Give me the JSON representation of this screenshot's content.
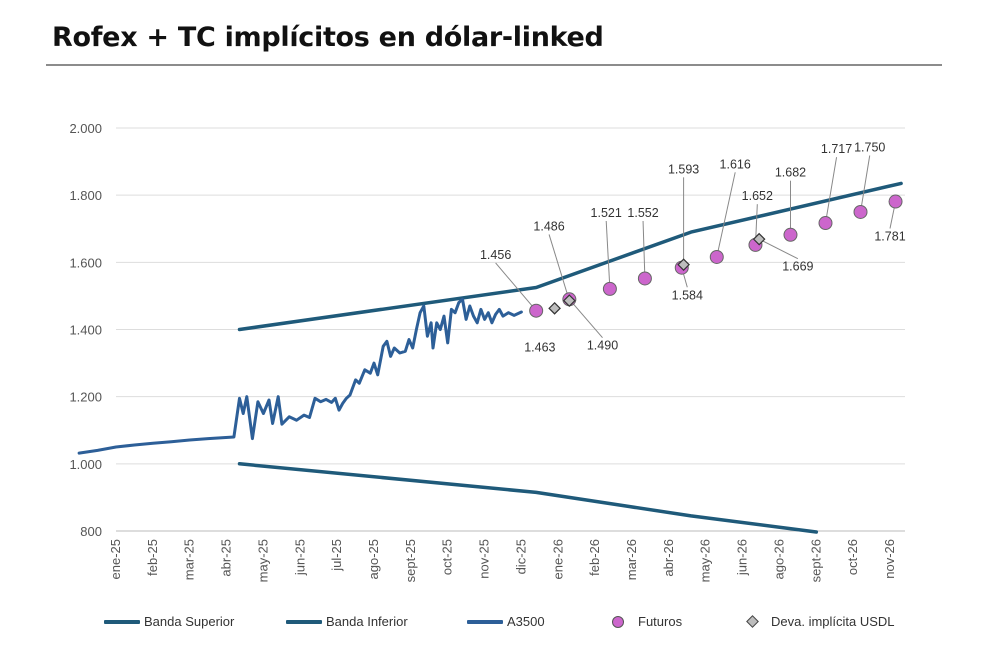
{
  "title": "Rofex + TC implícitos en dólar-linked",
  "colors": {
    "banda": "#1f5a7a",
    "a3500": "#2d5f98",
    "futuros": "#cc66cc",
    "deva": "#bdbdbd",
    "grid": "#dddddd"
  },
  "chart_data": {
    "type": "line",
    "title": "Rofex + TC implícitos en dólar-linked",
    "ylim": [
      800,
      2000
    ],
    "yticks": [
      800,
      1000,
      1200,
      1400,
      1600,
      1800,
      2000
    ],
    "ytick_labels": [
      "800",
      "1.000",
      "1.200",
      "1.400",
      "1.600",
      "1.800",
      "2.000"
    ],
    "xlim": [
      0,
      22
    ],
    "xticks": [
      1,
      2,
      3,
      4,
      5,
      6,
      7,
      8,
      9,
      10,
      11,
      12,
      13,
      14,
      15,
      16,
      17,
      18,
      19,
      20,
      21,
      22
    ],
    "xtick_labels": [
      "ene-25",
      "feb-25",
      "mar-25",
      "abr-25",
      "may-25",
      "jun-25",
      "jul-25",
      "ago-25",
      "sept-25",
      "oct-25",
      "nov-25",
      "dic-25",
      "ene-26",
      "feb-26",
      "mar-26",
      "abr-26",
      "may-26",
      "jun-26",
      "ago-26",
      "sept-26",
      "oct-26",
      "nov-26"
    ],
    "grid": true,
    "legend_position": "bottom",
    "series": [
      {
        "name": "Banda Superior",
        "style": "line",
        "points": [
          [
            4.35,
            1400
          ],
          [
            12.4,
            1525
          ],
          [
            16.6,
            1690
          ],
          [
            22.3,
            1835
          ]
        ]
      },
      {
        "name": "Banda Inferior",
        "style": "line",
        "points": [
          [
            4.35,
            1000
          ],
          [
            12.4,
            915
          ],
          [
            16.6,
            845
          ],
          [
            20.0,
            797
          ]
        ]
      },
      {
        "name": "A3500",
        "style": "line",
        "points": [
          [
            0,
            1032
          ],
          [
            0.5,
            1040
          ],
          [
            1,
            1050
          ],
          [
            1.5,
            1056
          ],
          [
            2,
            1061
          ],
          [
            2.5,
            1066
          ],
          [
            3,
            1071
          ],
          [
            3.5,
            1075
          ],
          [
            4.2,
            1080
          ],
          [
            4.35,
            1195
          ],
          [
            4.45,
            1150
          ],
          [
            4.55,
            1200
          ],
          [
            4.7,
            1075
          ],
          [
            4.85,
            1185
          ],
          [
            5.0,
            1150
          ],
          [
            5.15,
            1190
          ],
          [
            5.25,
            1120
          ],
          [
            5.4,
            1200
          ],
          [
            5.5,
            1118
          ],
          [
            5.7,
            1140
          ],
          [
            5.9,
            1130
          ],
          [
            6.1,
            1145
          ],
          [
            6.25,
            1138
          ],
          [
            6.4,
            1195
          ],
          [
            6.55,
            1185
          ],
          [
            6.7,
            1192
          ],
          [
            6.85,
            1183
          ],
          [
            6.95,
            1195
          ],
          [
            7.05,
            1160
          ],
          [
            7.15,
            1180
          ],
          [
            7.25,
            1195
          ],
          [
            7.35,
            1205
          ],
          [
            7.5,
            1250
          ],
          [
            7.6,
            1240
          ],
          [
            7.75,
            1280
          ],
          [
            7.9,
            1270
          ],
          [
            8.0,
            1300
          ],
          [
            8.1,
            1265
          ],
          [
            8.25,
            1350
          ],
          [
            8.35,
            1365
          ],
          [
            8.45,
            1320
          ],
          [
            8.55,
            1345
          ],
          [
            8.7,
            1330
          ],
          [
            8.85,
            1335
          ],
          [
            8.95,
            1370
          ],
          [
            9.05,
            1345
          ],
          [
            9.15,
            1400
          ],
          [
            9.25,
            1450
          ],
          [
            9.35,
            1470
          ],
          [
            9.45,
            1380
          ],
          [
            9.55,
            1420
          ],
          [
            9.6,
            1345
          ],
          [
            9.7,
            1420
          ],
          [
            9.8,
            1400
          ],
          [
            9.9,
            1440
          ],
          [
            10.0,
            1360
          ],
          [
            10.1,
            1460
          ],
          [
            10.2,
            1450
          ],
          [
            10.3,
            1480
          ],
          [
            10.4,
            1490
          ],
          [
            10.5,
            1430
          ],
          [
            10.6,
            1470
          ],
          [
            10.7,
            1440
          ],
          [
            10.8,
            1420
          ],
          [
            10.9,
            1460
          ],
          [
            11.0,
            1430
          ],
          [
            11.1,
            1450
          ],
          [
            11.2,
            1420
          ],
          [
            11.3,
            1445
          ],
          [
            11.4,
            1460
          ],
          [
            11.5,
            1440
          ],
          [
            11.65,
            1450
          ],
          [
            11.8,
            1442
          ],
          [
            12.0,
            1452
          ]
        ]
      },
      {
        "name": "Futuros",
        "style": "marker-circle",
        "points": [
          [
            12.4,
            1456
          ],
          [
            13.3,
            1490
          ],
          [
            14.4,
            1521
          ],
          [
            15.35,
            1552
          ],
          [
            16.35,
            1584
          ],
          [
            17.3,
            1616
          ],
          [
            18.35,
            1652
          ],
          [
            19.3,
            1682
          ],
          [
            20.25,
            1717
          ],
          [
            21.2,
            1750
          ],
          [
            22.15,
            1781
          ]
        ]
      },
      {
        "name": "Deva. implícita USDL",
        "style": "marker-diamond",
        "points": [
          [
            12.9,
            1463
          ],
          [
            13.3,
            1486
          ],
          [
            16.4,
            1593
          ],
          [
            18.45,
            1669
          ]
        ]
      }
    ],
    "annotations": [
      {
        "text": "1.456",
        "point": [
          12.4,
          1456
        ],
        "label_at": [
          11.3,
          1610
        ],
        "leader": true
      },
      {
        "text": "1.463",
        "point": [
          12.9,
          1463
        ],
        "label_at": [
          12.5,
          1335
        ],
        "leader": false
      },
      {
        "text": "1.486",
        "point": [
          13.3,
          1486
        ],
        "label_at": [
          12.75,
          1695
        ],
        "leader": true
      },
      {
        "text": "1.490",
        "point": [
          13.3,
          1490
        ],
        "label_at": [
          14.2,
          1340
        ],
        "leader": true
      },
      {
        "text": "1.521",
        "point": [
          14.4,
          1521
        ],
        "label_at": [
          14.3,
          1735
        ],
        "leader": true
      },
      {
        "text": "1.552",
        "point": [
          15.35,
          1552
        ],
        "label_at": [
          15.3,
          1735
        ],
        "leader": true
      },
      {
        "text": "1.584",
        "point": [
          16.35,
          1584
        ],
        "label_at": [
          16.5,
          1490
        ],
        "leader": true
      },
      {
        "text": "1.593",
        "point": [
          16.4,
          1593
        ],
        "label_at": [
          16.4,
          1865
        ],
        "leader": true
      },
      {
        "text": "1.616",
        "point": [
          17.3,
          1616
        ],
        "label_at": [
          17.8,
          1880
        ],
        "leader": true
      },
      {
        "text": "1.652",
        "point": [
          18.35,
          1652
        ],
        "label_at": [
          18.4,
          1785
        ],
        "leader": true
      },
      {
        "text": "1.669",
        "point": [
          18.45,
          1669
        ],
        "label_at": [
          19.5,
          1575
        ],
        "leader": true
      },
      {
        "text": "1.682",
        "point": [
          19.3,
          1682
        ],
        "label_at": [
          19.3,
          1855
        ],
        "leader": true
      },
      {
        "text": "1.717",
        "point": [
          20.25,
          1717
        ],
        "label_at": [
          20.55,
          1925
        ],
        "leader": true
      },
      {
        "text": "1.750",
        "point": [
          21.2,
          1750
        ],
        "label_at": [
          21.45,
          1930
        ],
        "leader": true
      },
      {
        "text": "1.781",
        "point": [
          22.15,
          1781
        ],
        "label_at": [
          22.0,
          1665
        ],
        "leader": true
      }
    ]
  },
  "legend": [
    {
      "label": "Banda Superior",
      "marker": "line"
    },
    {
      "label": "Banda Inferior",
      "marker": "line"
    },
    {
      "label": "A3500",
      "marker": "line"
    },
    {
      "label": "Futuros",
      "marker": "circle"
    },
    {
      "label": "Deva. implícita USDL",
      "marker": "diamond"
    }
  ]
}
